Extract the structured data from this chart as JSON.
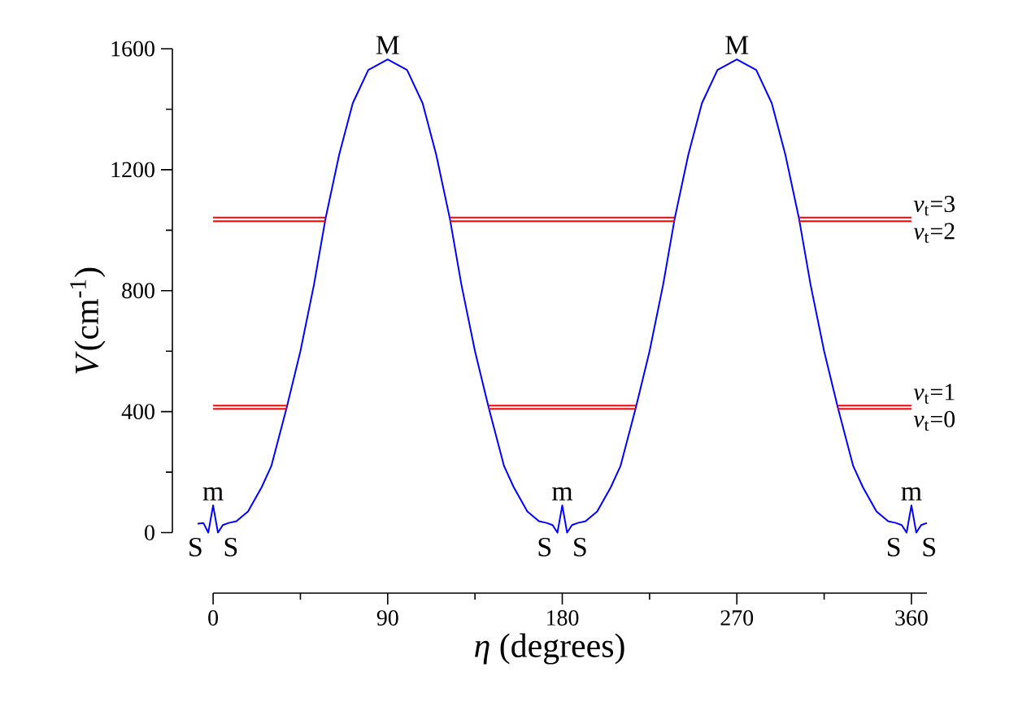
{
  "chart_data": {
    "type": "line",
    "xlabel": "*η* (degrees)",
    "ylabel": "*V*(cm$^{-1}$)",
    "xlim": [
      -21,
      368
    ],
    "ylim": [
      -200,
      1600
    ],
    "xticks": [
      0,
      {
        "value": 45,
        "label": null
      },
      90,
      {
        "value": 135,
        "label": null
      },
      180,
      {
        "value": 225,
        "label": null
      },
      270,
      {
        "value": 315,
        "label": null
      },
      360
    ],
    "yticks": [
      0,
      {
        "value": 200,
        "label": null
      },
      400,
      {
        "value": 600,
        "label": null
      },
      800,
      {
        "value": 1000,
        "label": null
      },
      1200,
      {
        "value": 1400,
        "label": null
      },
      1600
    ],
    "grid": false,
    "legend": false,
    "marker": "none",
    "line_style": "solid",
    "series": [
      {
        "color": "#0000ff",
        "x": [
          -8,
          -5,
          -2.5,
          0,
          2.5,
          5,
          8,
          12,
          18,
          25,
          30,
          38,
          45,
          52,
          58,
          65,
          72,
          80,
          90,
          100,
          108,
          115,
          122,
          128,
          135,
          142,
          150,
          155,
          162,
          168,
          172,
          175,
          177.5,
          180,
          182.5,
          185,
          188,
          192,
          198,
          205,
          210,
          218,
          225,
          232,
          238,
          245,
          252,
          260,
          270,
          280,
          288,
          295,
          302,
          308,
          315,
          322,
          330,
          335,
          342,
          348,
          352,
          355,
          357.5,
          360,
          362.5,
          365,
          368
        ],
        "values": [
          30,
          32,
          0,
          90,
          0,
          25,
          32,
          38,
          70,
          150,
          220,
          415,
          600,
          820,
          1040,
          1250,
          1420,
          1530,
          1565,
          1530,
          1420,
          1250,
          1040,
          820,
          600,
          415,
          220,
          150,
          70,
          38,
          32,
          25,
          0,
          90,
          0,
          25,
          32,
          38,
          70,
          150,
          220,
          415,
          600,
          820,
          1040,
          1250,
          1420,
          1530,
          1565,
          1530,
          1420,
          1250,
          1040,
          820,
          600,
          415,
          220,
          150,
          70,
          38,
          32,
          25,
          0,
          90,
          0,
          25,
          32
        ]
      },
      {
        "name": "*v*$_{t}$=3",
        "color": "#ff0000",
        "x": [
          0,
          58,
          90,
          122,
          238,
          270,
          302,
          360
        ],
        "values": [
          1042,
          1042,
          null,
          1042,
          1042,
          null,
          1042,
          1042
        ]
      },
      {
        "name": "*v*$_{t}$=2",
        "color": "#ff0000",
        "x": [
          0,
          58,
          90,
          122,
          238,
          270,
          302,
          360
        ],
        "values": [
          1030,
          1030,
          null,
          1030,
          1030,
          null,
          1030,
          1030
        ]
      },
      {
        "name": "*v*$_{t}$=1",
        "color": "#ff0000",
        "x": [
          0,
          38,
          90,
          142,
          218,
          270,
          322,
          360
        ],
        "values": [
          420,
          420,
          null,
          420,
          420,
          null,
          420,
          420
        ]
      },
      {
        "name": "*v*$_{t}$=0",
        "color": "#ff0000",
        "x": [
          0,
          38,
          90,
          142,
          218,
          270,
          322,
          360
        ],
        "values": [
          409,
          409,
          null,
          409,
          409,
          null,
          409,
          409
        ]
      }
    ],
    "annotations": [
      {
        "text": "M",
        "x": 90,
        "y": 1565
      },
      {
        "text": "M",
        "x": 270,
        "y": 1565
      },
      {
        "text": "m",
        "x": 0,
        "y": 90
      },
      {
        "text": "m",
        "x": 180,
        "y": 90
      },
      {
        "text": "m",
        "x": 360,
        "y": 90
      },
      {
        "text": "S",
        "x": -2.5,
        "y": 0
      },
      {
        "text": "S",
        "x": 2.5,
        "y": 0
      },
      {
        "text": "S",
        "x": 177.5,
        "y": 0
      },
      {
        "text": "S",
        "x": 182.5,
        "y": 0
      },
      {
        "text": "S",
        "x": 357.5,
        "y": 0
      },
      {
        "text": "S",
        "x": 362.5,
        "y": 0
      }
    ]
  }
}
